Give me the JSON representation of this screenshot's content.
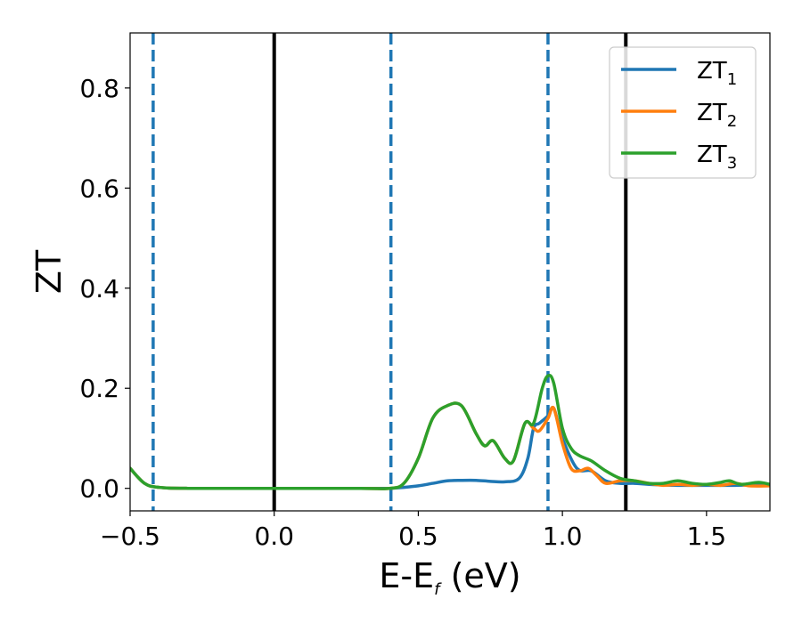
{
  "chart_data": {
    "type": "line",
    "xlabel": "E-E",
    "xlabel_sub": "f",
    "xlabel_unit": " (eV)",
    "ylabel": "ZT",
    "xlim": [
      -0.5,
      1.72
    ],
    "ylim": [
      -0.045,
      0.91
    ],
    "xticks": [
      -0.5,
      0.0,
      0.5,
      1.0,
      1.5
    ],
    "xtick_labels": [
      "−0.5",
      "0.0",
      "0.5",
      "1.0",
      "1.5"
    ],
    "yticks": [
      0.0,
      0.2,
      0.4,
      0.6,
      0.8
    ],
    "ytick_labels": [
      "0.0",
      "0.2",
      "0.4",
      "0.6",
      "0.8"
    ],
    "grid": false,
    "legend_position": "top-right",
    "vlines": [
      {
        "x": -0.42,
        "style": "dashed",
        "color": "#1f77b4"
      },
      {
        "x": 0.0,
        "style": "solid",
        "color": "#000000"
      },
      {
        "x": 0.405,
        "style": "dashed",
        "color": "#1f77b4"
      },
      {
        "x": 0.95,
        "style": "dashed",
        "color": "#1f77b4"
      },
      {
        "x": 1.22,
        "style": "solid",
        "color": "#000000"
      }
    ],
    "series": [
      {
        "name": "ZT",
        "name_sub": "1",
        "color": "#1f77b4",
        "x": [
          -0.5,
          -0.45,
          -0.4,
          -0.3,
          0.0,
          0.3,
          0.4,
          0.45,
          0.5,
          0.55,
          0.6,
          0.65,
          0.7,
          0.75,
          0.8,
          0.85,
          0.88,
          0.9,
          0.92,
          0.95,
          0.97,
          1.0,
          1.05,
          1.1,
          1.15,
          1.2,
          1.25,
          1.3,
          1.4,
          1.5,
          1.6,
          1.72
        ],
        "y": [
          0.04,
          0.01,
          0.002,
          0.0,
          0.0,
          0.0,
          0.0,
          0.002,
          0.005,
          0.01,
          0.015,
          0.016,
          0.016,
          0.014,
          0.013,
          0.02,
          0.06,
          0.12,
          0.13,
          0.145,
          0.16,
          0.1,
          0.04,
          0.035,
          0.015,
          0.01,
          0.01,
          0.008,
          0.006,
          0.006,
          0.006,
          0.008
        ]
      },
      {
        "name": "ZT",
        "name_sub": "2",
        "color": "#ff7f0e",
        "x": [
          -0.5,
          -0.45,
          -0.4,
          -0.3,
          0.0,
          0.3,
          0.4,
          0.45,
          0.5,
          0.55,
          0.6,
          0.65,
          0.7,
          0.73,
          0.76,
          0.8,
          0.83,
          0.87,
          0.9,
          0.92,
          0.95,
          0.97,
          1.0,
          1.03,
          1.06,
          1.09,
          1.12,
          1.15,
          1.2,
          1.25,
          1.3,
          1.35,
          1.4,
          1.45,
          1.5,
          1.55,
          1.6,
          1.65,
          1.72
        ],
        "y": [
          0.04,
          0.01,
          0.002,
          0.0,
          0.0,
          0.0,
          0.0,
          0.01,
          0.06,
          0.14,
          0.165,
          0.165,
          0.11,
          0.085,
          0.095,
          0.06,
          0.055,
          0.13,
          0.12,
          0.115,
          0.14,
          0.16,
          0.09,
          0.04,
          0.035,
          0.04,
          0.025,
          0.01,
          0.015,
          0.015,
          0.01,
          0.006,
          0.008,
          0.006,
          0.008,
          0.006,
          0.01,
          0.005,
          0.005
        ]
      },
      {
        "name": "ZT",
        "name_sub": "3",
        "color": "#2ca02c",
        "x": [
          -0.5,
          -0.45,
          -0.4,
          -0.3,
          0.0,
          0.3,
          0.4,
          0.45,
          0.5,
          0.55,
          0.6,
          0.65,
          0.7,
          0.73,
          0.76,
          0.8,
          0.83,
          0.87,
          0.9,
          0.93,
          0.95,
          0.97,
          1.0,
          1.03,
          1.06,
          1.1,
          1.15,
          1.2,
          1.25,
          1.3,
          1.35,
          1.4,
          1.45,
          1.5,
          1.55,
          1.58,
          1.62,
          1.68,
          1.72
        ],
        "y": [
          0.04,
          0.01,
          0.002,
          0.0,
          0.0,
          0.0,
          0.0,
          0.01,
          0.06,
          0.14,
          0.165,
          0.165,
          0.11,
          0.085,
          0.095,
          0.06,
          0.055,
          0.13,
          0.13,
          0.2,
          0.225,
          0.21,
          0.12,
          0.08,
          0.065,
          0.055,
          0.035,
          0.02,
          0.015,
          0.01,
          0.01,
          0.015,
          0.01,
          0.008,
          0.012,
          0.015,
          0.008,
          0.012,
          0.008
        ]
      }
    ]
  }
}
